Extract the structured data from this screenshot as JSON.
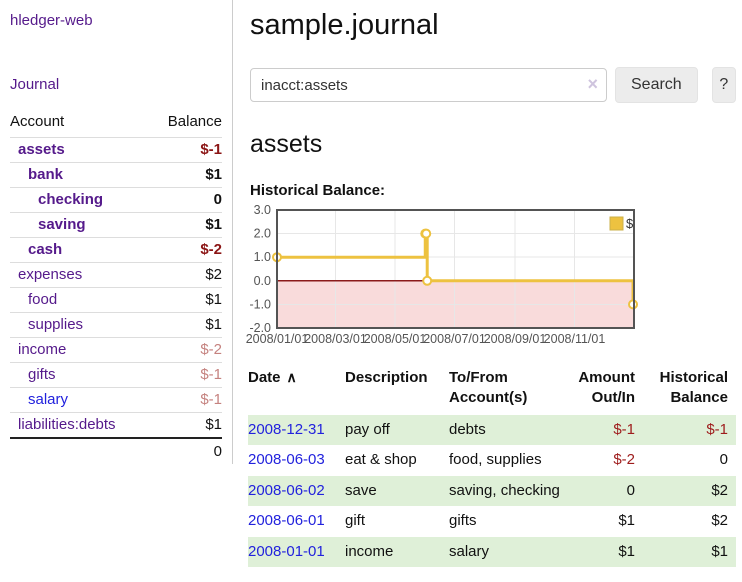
{
  "app": {
    "brand": "hledger-web",
    "nav_journal": "Journal"
  },
  "colors": {
    "accent_purple": "#551a8b",
    "link_blue": "#2222dd",
    "negative_strong": "#8b1515",
    "negative_light": "#c5827f",
    "table_negative": "#9e1c1c",
    "row_stripe_green": "#dff0d8",
    "chart_gold": "#edc240",
    "chart_negative_fill": "#f9dbdb",
    "chart_zero_line": "#8b1a1a"
  },
  "sidebar": {
    "header": {
      "account": "Account",
      "balance": "Balance"
    },
    "rows": [
      {
        "name": "assets",
        "balance": "$-1",
        "depth": 1,
        "bold": true,
        "balance_tone": "strong-negative",
        "link_tone": "purple"
      },
      {
        "name": "bank",
        "balance": "$1",
        "depth": 2,
        "bold": true,
        "balance_tone": "normal",
        "link_tone": "purple"
      },
      {
        "name": "checking",
        "balance": "0",
        "depth": 3,
        "bold": true,
        "balance_tone": "normal",
        "link_tone": "purple"
      },
      {
        "name": "saving",
        "balance": "$1",
        "depth": 3,
        "bold": true,
        "balance_tone": "normal",
        "link_tone": "purple"
      },
      {
        "name": "cash",
        "balance": "$-2",
        "depth": 2,
        "bold": true,
        "balance_tone": "strong-negative",
        "link_tone": "purple"
      },
      {
        "name": "expenses",
        "balance": "$2",
        "depth": 1,
        "bold": false,
        "balance_tone": "normal",
        "link_tone": "purple"
      },
      {
        "name": "food",
        "balance": "$1",
        "depth": 2,
        "bold": false,
        "balance_tone": "normal",
        "link_tone": "purple"
      },
      {
        "name": "supplies",
        "balance": "$1",
        "depth": 2,
        "bold": false,
        "balance_tone": "normal",
        "link_tone": "purple"
      },
      {
        "name": "income",
        "balance": "$-2",
        "depth": 1,
        "bold": false,
        "balance_tone": "light-negative",
        "link_tone": "purple"
      },
      {
        "name": "gifts",
        "balance": "$-1",
        "depth": 2,
        "bold": false,
        "balance_tone": "light-negative",
        "link_tone": "purple"
      },
      {
        "name": "salary",
        "balance": "$-1",
        "depth": 2,
        "bold": false,
        "balance_tone": "light-negative",
        "link_tone": "blue"
      },
      {
        "name": "liabilities:debts",
        "balance": "$1",
        "depth": 1,
        "bold": false,
        "balance_tone": "normal",
        "link_tone": "purple"
      }
    ],
    "total": "0"
  },
  "header": {
    "title": "sample.journal"
  },
  "search": {
    "value": "inacct:assets",
    "clear_icon": "×",
    "button_label": "Search",
    "help_label": "?"
  },
  "account_page": {
    "title": "assets",
    "chart_label": "Historical Balance:"
  },
  "chart_data": {
    "type": "line",
    "style": "step",
    "title": "Historical Balance:",
    "legend": {
      "label": "$",
      "position": "top-right"
    },
    "xlabel": "",
    "ylabel": "",
    "x_range": [
      "2008-01-01",
      "2009-01-01"
    ],
    "ylim": [
      -2,
      3
    ],
    "yticks": [
      "3.0",
      "2.0",
      "1.0",
      "0.0",
      "-1.0",
      "-2.0"
    ],
    "xticks": [
      "2008/01/01",
      "2008/03/01",
      "2008/05/01",
      "2008/07/01",
      "2008/09/01",
      "2008/11/01"
    ],
    "grid": true,
    "series": [
      {
        "name": "$",
        "color": "#edc240",
        "points": [
          {
            "date": "2008-01-01",
            "value": 1
          },
          {
            "date": "2008-06-01",
            "value": 2
          },
          {
            "date": "2008-06-02",
            "value": 2
          },
          {
            "date": "2008-06-03",
            "value": 0
          },
          {
            "date": "2008-12-31",
            "value": -1
          }
        ]
      }
    ],
    "negative_region_fill": "#f9dbdb",
    "zero_line_color": "#8b1a1a"
  },
  "register": {
    "columns": [
      "Date",
      "Description",
      "To/From Account(s)",
      "Amount Out/In",
      "Historical Balance"
    ],
    "sort_icon": "∧",
    "rows": [
      {
        "date": "2008-12-31",
        "description": "pay off",
        "accounts": "debts",
        "amount": "$-1",
        "amount_negative": true,
        "balance": "$-1",
        "balance_negative": true
      },
      {
        "date": "2008-06-03",
        "description": "eat & shop",
        "accounts": "food, supplies",
        "amount": "$-2",
        "amount_negative": true,
        "balance": "0",
        "balance_negative": false
      },
      {
        "date": "2008-06-02",
        "description": "save",
        "accounts": "saving, checking",
        "amount": "0",
        "amount_negative": false,
        "balance": "$2",
        "balance_negative": false
      },
      {
        "date": "2008-06-01",
        "description": "gift",
        "accounts": "gifts",
        "amount": "$1",
        "amount_negative": false,
        "balance": "$2",
        "balance_negative": false
      },
      {
        "date": "2008-01-01",
        "description": "income",
        "accounts": "salary",
        "amount": "$1",
        "amount_negative": false,
        "balance": "$1",
        "balance_negative": false
      }
    ]
  }
}
